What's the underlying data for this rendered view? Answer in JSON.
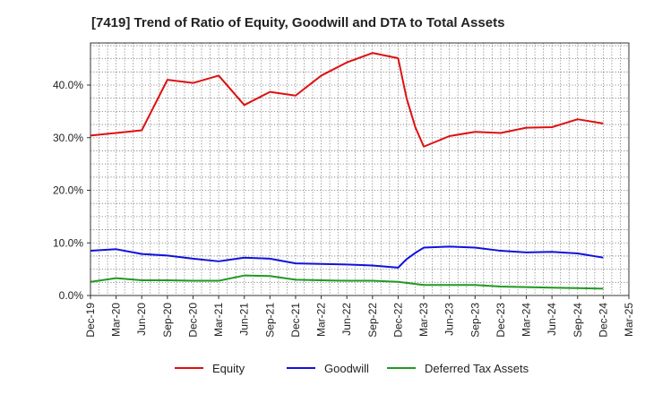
{
  "chart_data": {
    "type": "line",
    "title": "[7419]  Trend of Ratio of Equity, Goodwill and DTA to Total Assets",
    "xlabel": "",
    "ylabel": "",
    "ylim": [
      0,
      48
    ],
    "y_ticks": [
      0,
      10,
      20,
      30,
      40
    ],
    "y_tick_labels": [
      "0.0%",
      "10.0%",
      "20.0%",
      "30.0%",
      "40.0%"
    ],
    "x_tick_labels": [
      "Dec-19",
      "Mar-20",
      "Jun-20",
      "Sep-20",
      "Dec-20",
      "Mar-21",
      "Jun-21",
      "Sep-21",
      "Dec-21",
      "Mar-22",
      "Jun-22",
      "Sep-22",
      "Dec-22",
      "Mar-23",
      "Jun-23",
      "Sep-23",
      "Dec-23",
      "Mar-24",
      "Jun-24",
      "Sep-24",
      "Dec-24",
      "Mar-25"
    ],
    "grid": true,
    "legend_position": "bottom",
    "series": [
      {
        "name": "Equity",
        "color": "#dd1111",
        "x": [
          0,
          1,
          2,
          3,
          4,
          5,
          6,
          7,
          8,
          9,
          10,
          11,
          12,
          12.33,
          12.67,
          13,
          14,
          15,
          16,
          17,
          18,
          19,
          20
        ],
        "values": [
          30.4,
          30.9,
          31.4,
          41.0,
          40.4,
          41.8,
          36.2,
          38.7,
          38.0,
          41.8,
          44.3,
          46.1,
          45.1,
          37.5,
          32.0,
          28.3,
          30.3,
          31.1,
          30.9,
          31.9,
          32.0,
          33.5,
          32.7
        ]
      },
      {
        "name": "Goodwill",
        "color": "#1111dd",
        "x": [
          0,
          1,
          2,
          3,
          4,
          5,
          6,
          7,
          8,
          9,
          10,
          11,
          12,
          12.33,
          12.67,
          13,
          14,
          15,
          16,
          17,
          18,
          19,
          20
        ],
        "values": [
          8.5,
          8.8,
          7.9,
          7.6,
          7.0,
          6.5,
          7.2,
          7.0,
          6.1,
          6.0,
          5.9,
          5.7,
          5.3,
          6.9,
          8.1,
          9.1,
          9.3,
          9.1,
          8.5,
          8.2,
          8.3,
          8.0,
          7.2
        ]
      },
      {
        "name": "Deferred Tax Assets",
        "color": "#229922",
        "x": [
          0,
          1,
          2,
          3,
          4,
          5,
          6,
          7,
          8,
          9,
          10,
          11,
          12,
          12.33,
          12.67,
          13,
          14,
          15,
          16,
          17,
          18,
          19,
          20
        ],
        "values": [
          2.6,
          3.3,
          2.9,
          2.9,
          2.8,
          2.8,
          3.8,
          3.7,
          3.0,
          2.9,
          2.8,
          2.8,
          2.6,
          2.4,
          2.2,
          2.0,
          2.0,
          2.0,
          1.7,
          1.6,
          1.5,
          1.4,
          1.3
        ]
      }
    ]
  }
}
